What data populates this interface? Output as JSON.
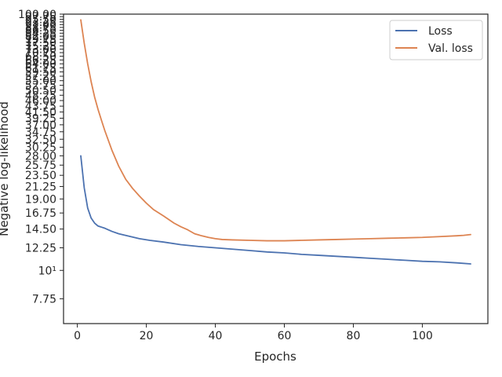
{
  "chart_data": {
    "type": "line",
    "xlabel": "Epochs",
    "ylabel": "Negative log-likelihood",
    "x_scale": "linear",
    "y_scale": "log",
    "xlim": [
      -4,
      119
    ],
    "ylim": [
      6.2,
      100
    ],
    "x_ticks": [
      0,
      20,
      40,
      60,
      80,
      100
    ],
    "x_tick_labels": [
      "0",
      "20",
      "40",
      "60",
      "80",
      "100"
    ],
    "y_ticks": [
      7.75,
      10,
      12.25,
      14.5,
      16.75,
      19,
      21.25,
      23.5,
      25.75,
      28,
      30.25,
      32.5,
      34.75,
      37,
      39.25,
      41.5,
      43.75,
      46,
      48.25,
      50.5,
      52.75,
      55,
      57.25,
      59.5,
      61.75,
      64,
      66.25,
      68.5,
      70.75,
      73,
      75.25,
      77.5,
      79.75,
      82,
      84.25,
      86.5,
      88.75,
      91,
      93.25,
      95.5,
      97.75,
      100
    ],
    "y_tick_labels": [
      "7.75",
      "10¹",
      "12.25",
      "14.50",
      "16.75",
      "19.00",
      "21.25",
      "23.50",
      "25.75",
      "28.00",
      "30.25",
      "32.50",
      "34.75",
      "37.00",
      "39.25",
      "41.50",
      "43.75",
      "46.00",
      "48.25",
      "50.50",
      "52.75",
      "55.00",
      "57.25",
      "59.50",
      "61.75",
      "64.00",
      "66.25",
      "68.50",
      "70.75",
      "73.00",
      "75.25",
      "77.50",
      "79.75",
      "82.00",
      "84.25",
      "86.50",
      "88.75",
      "91.00",
      "93.25",
      "95.50",
      "97.75",
      "100.00"
    ],
    "grid": false,
    "legend_position": "top-right",
    "series": [
      {
        "name": "Loss",
        "color": "#4c72b0",
        "x": [
          1,
          2,
          3,
          4,
          5,
          6,
          7,
          8,
          10,
          12,
          15,
          18,
          21,
          25,
          30,
          35,
          40,
          45,
          50,
          55,
          60,
          65,
          70,
          75,
          80,
          85,
          90,
          95,
          100,
          105,
          110,
          114
        ],
        "y": [
          28,
          21,
          17.5,
          16,
          15.3,
          14.9,
          14.75,
          14.6,
          14.2,
          13.9,
          13.6,
          13.3,
          13.1,
          12.9,
          12.6,
          12.4,
          12.25,
          12.1,
          11.95,
          11.8,
          11.7,
          11.55,
          11.45,
          11.35,
          11.25,
          11.15,
          11.05,
          10.95,
          10.85,
          10.8,
          10.7,
          10.6
        ]
      },
      {
        "name": "Val. loss",
        "color": "#dd8452",
        "x": [
          1,
          2,
          3,
          4,
          5,
          6,
          7,
          8,
          10,
          12,
          14,
          16,
          18,
          20,
          22,
          25,
          28,
          30,
          32,
          34,
          36,
          38,
          40,
          42,
          45,
          50,
          55,
          60,
          65,
          70,
          75,
          80,
          85,
          90,
          95,
          100,
          105,
          110,
          112,
          114
        ],
        "y": [
          95,
          77,
          64,
          54.5,
          47.5,
          42.5,
          38.5,
          35,
          29.5,
          25.5,
          22.7,
          20.9,
          19.5,
          18.3,
          17.3,
          16.3,
          15.3,
          14.8,
          14.4,
          13.9,
          13.65,
          13.45,
          13.3,
          13.2,
          13.15,
          13.1,
          13.05,
          13.05,
          13.1,
          13.15,
          13.2,
          13.25,
          13.3,
          13.35,
          13.4,
          13.45,
          13.55,
          13.65,
          13.7,
          13.8
        ]
      }
    ]
  }
}
